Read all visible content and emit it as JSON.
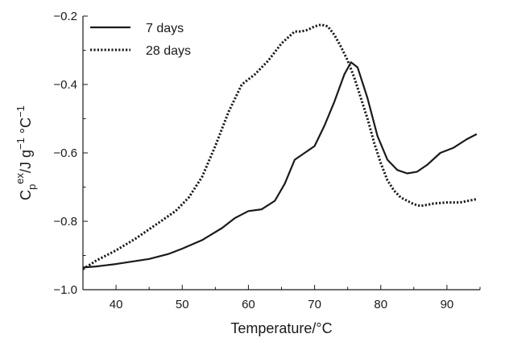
{
  "chart_data": {
    "type": "line",
    "xlabel": "Temperature/°C",
    "ylabel_parts": {
      "main": "C",
      "sub": "p",
      "sup": "ex",
      "unit": "/J g",
      "unit_sup1": "−1",
      "unit_mid": " °C",
      "unit_sup2": "−1"
    },
    "xlim": [
      35,
      95
    ],
    "ylim": [
      -1.0,
      -0.2
    ],
    "x_ticks": [
      40,
      50,
      60,
      70,
      80,
      90
    ],
    "y_ticks": [
      -1.0,
      -0.8,
      -0.6,
      -0.4,
      -0.2
    ],
    "y_tick_labels": [
      "−1.0",
      "−0.8",
      "−0.6",
      "−0.4",
      "−0.2"
    ],
    "legend_position": "top-left",
    "grid": false,
    "series": [
      {
        "name": "7 days",
        "style": "solid",
        "color": "#1a1a1a",
        "x": [
          35,
          37,
          40,
          45,
          48,
          50,
          53,
          56,
          58,
          60,
          62,
          64,
          65.5,
          67,
          68.5,
          70,
          71.5,
          73,
          74.5,
          75.5,
          76.5,
          78,
          79.5,
          81,
          82.5,
          84,
          85.5,
          87,
          89,
          91,
          93,
          94.5
        ],
        "y": [
          -0.935,
          -0.932,
          -0.925,
          -0.91,
          -0.895,
          -0.88,
          -0.855,
          -0.82,
          -0.79,
          -0.77,
          -0.765,
          -0.74,
          -0.69,
          -0.62,
          -0.6,
          -0.58,
          -0.52,
          -0.45,
          -0.37,
          -0.335,
          -0.35,
          -0.44,
          -0.55,
          -0.62,
          -0.65,
          -0.66,
          -0.655,
          -0.635,
          -0.6,
          -0.585,
          -0.56,
          -0.545
        ]
      },
      {
        "name": "28 days",
        "style": "dotted",
        "color": "#1a1a1a",
        "x": [
          35,
          37,
          40,
          43,
          46,
          49,
          51,
          53,
          55,
          57,
          59,
          61,
          63,
          65,
          67,
          68,
          69,
          70,
          71,
          72,
          73,
          74,
          75,
          76,
          77,
          78,
          79,
          80,
          81,
          82,
          83,
          84,
          85,
          86,
          87,
          88,
          90,
          92,
          94.5
        ],
        "y": [
          -0.94,
          -0.915,
          -0.885,
          -0.85,
          -0.81,
          -0.77,
          -0.73,
          -0.67,
          -0.58,
          -0.48,
          -0.4,
          -0.37,
          -0.33,
          -0.28,
          -0.245,
          -0.245,
          -0.24,
          -0.23,
          -0.225,
          -0.23,
          -0.255,
          -0.29,
          -0.33,
          -0.38,
          -0.44,
          -0.5,
          -0.57,
          -0.63,
          -0.68,
          -0.71,
          -0.73,
          -0.74,
          -0.75,
          -0.755,
          -0.752,
          -0.748,
          -0.745,
          -0.745,
          -0.735
        ]
      }
    ]
  }
}
